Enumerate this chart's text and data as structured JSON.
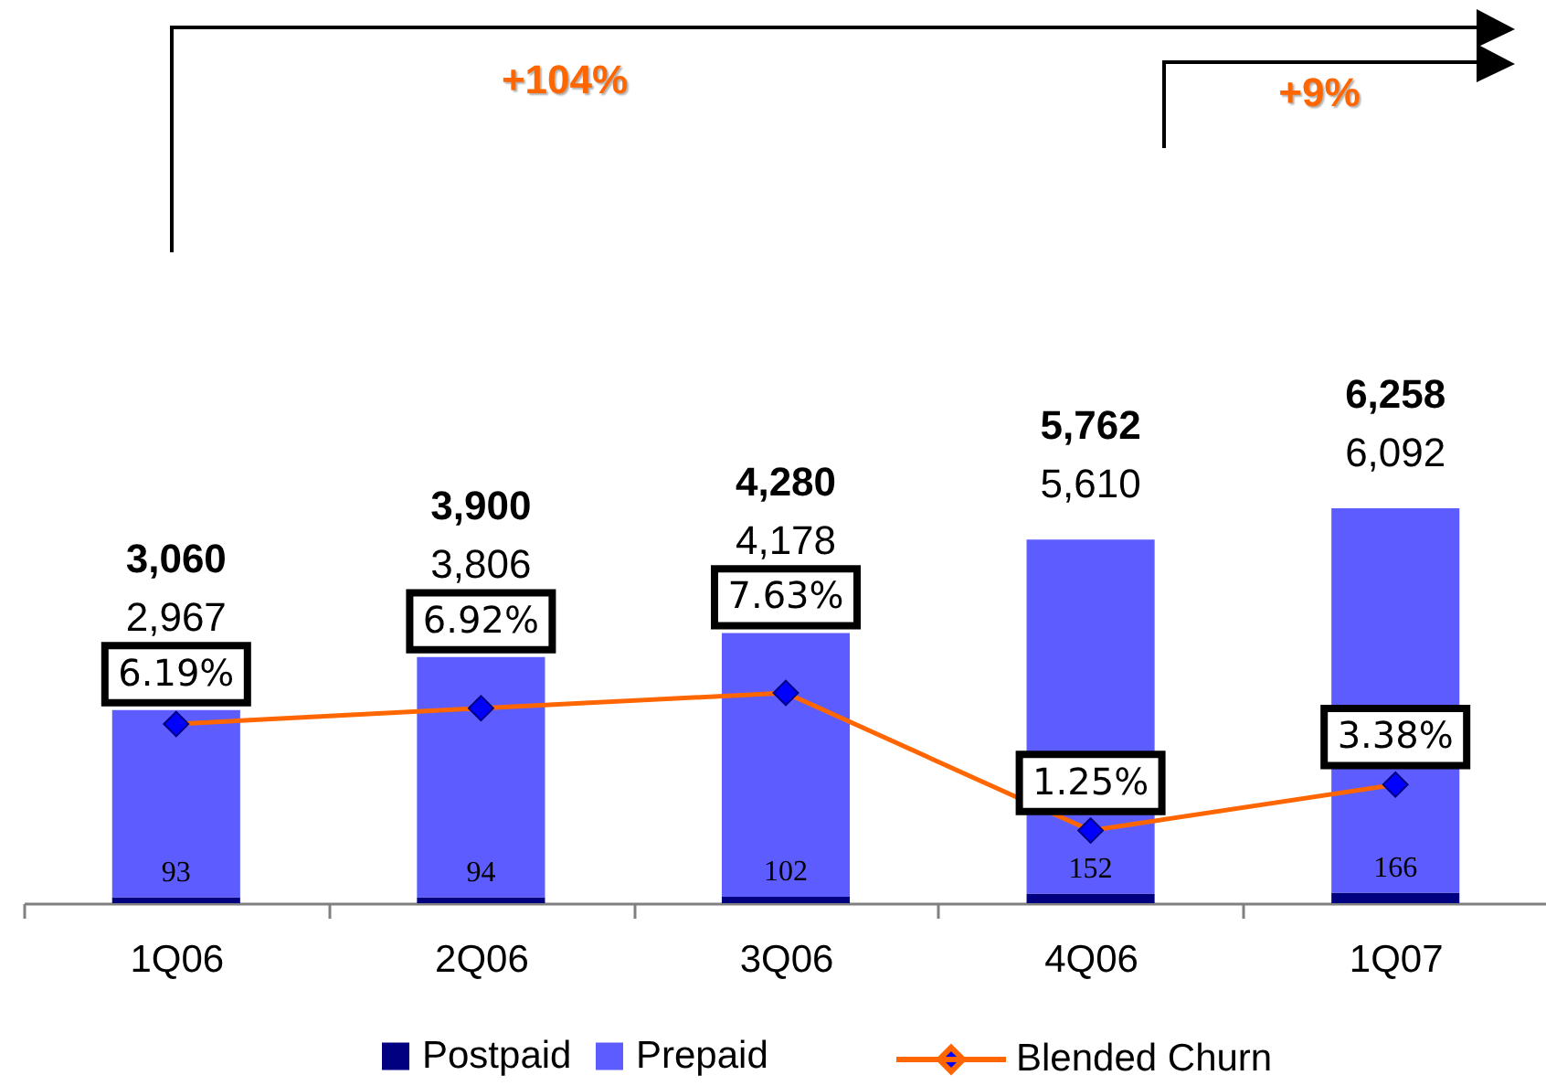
{
  "chart_data": {
    "type": "bar",
    "stacked": true,
    "categories": [
      "1Q06",
      "2Q06",
      "3Q06",
      "4Q06",
      "1Q07"
    ],
    "series": [
      {
        "name": "Postpaid",
        "color": "#000080",
        "values": [
          93,
          94,
          102,
          152,
          166
        ],
        "value_labels": [
          "93",
          "94",
          "102",
          "152",
          "166"
        ]
      },
      {
        "name": "Prepaid",
        "color": "#5c5cff",
        "values": [
          2967,
          3806,
          4178,
          5610,
          6092
        ],
        "value_labels": [
          "2,967",
          "3,806",
          "4,178",
          "5,610",
          "6,092"
        ]
      },
      {
        "name": "Blended Churn",
        "type": "line",
        "axis": "y2",
        "color": "#ff6600",
        "values": [
          6.19,
          6.92,
          7.63,
          1.25,
          3.38
        ],
        "value_labels": [
          "6.19%",
          "6.92%",
          "7.63%",
          "1.25%",
          "3.38%"
        ]
      }
    ],
    "totals": [
      "3,060",
      "3,900",
      "4,280",
      "5,762",
      "6,258"
    ],
    "annotations": [
      "+104%",
      "+9%"
    ],
    "tick_labels": "x",
    "legend": "bottom",
    "marker": "diamond"
  }
}
